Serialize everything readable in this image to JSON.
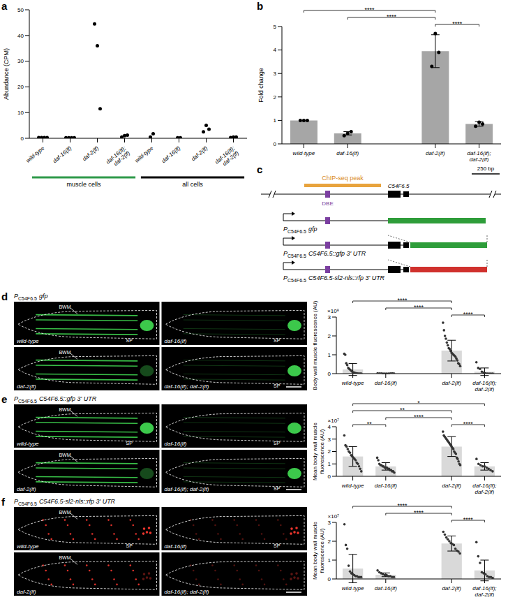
{
  "chart_data": [
    {
      "panel": "a",
      "type": "scatter",
      "y_label": "Abundance (CPM)",
      "categories": [
        "wild-type",
        "daf-16(lf)",
        "daf-2(lf)",
        "daf-16(lf); daf-2(lf)",
        "wild-type",
        "daf-16(lf)",
        "daf-2(lf)",
        "daf-16(lf); daf-2(lf)"
      ],
      "groups": [
        {
          "label": "muscle cells",
          "color": "#2f9a4a",
          "count": 4
        },
        {
          "label": "all cells",
          "color": "#000000",
          "count": 4
        }
      ],
      "points": [
        [
          0.3,
          0.3,
          0.3,
          0.3
        ],
        [
          0.2,
          0.2,
          0.2,
          0.2
        ],
        [
          44.5,
          36,
          11.5
        ],
        [
          0.5,
          1,
          1.2
        ],
        [
          0.5,
          1.8
        ],
        [
          0.2,
          0.2
        ],
        [
          2.5,
          5,
          3.5
        ],
        [
          0.3,
          0.5,
          0.5
        ]
      ],
      "color": "#000000",
      "ylim": [
        0,
        50
      ],
      "yticks": [
        0,
        10,
        20,
        30,
        40,
        50
      ]
    },
    {
      "panel": "b",
      "type": "bar",
      "y_label": "Fold change",
      "categories": [
        "wild-type",
        "daf-16(lf)",
        null,
        "daf-2(lf)",
        "daf-16(lf); daf-2(lf)"
      ],
      "values": [
        1,
        0.45,
        null,
        3.95,
        0.85
      ],
      "errors": [
        0,
        0.07,
        null,
        0.7,
        0.1
      ],
      "points": [
        [
          1,
          1,
          1
        ],
        [
          0.35,
          0.45,
          0.52
        ],
        null,
        [
          3.3,
          4.7,
          3.9
        ],
        [
          0.75,
          0.92,
          0.85
        ]
      ],
      "color": "#a6a6a6",
      "ylim": [
        0,
        5
      ],
      "yticks": [
        0,
        1,
        2,
        3,
        4,
        5
      ],
      "significance": [
        {
          "between": [
            "daf-2(lf)",
            "daf-16(lf); daf-2(lf)"
          ],
          "label": "****"
        },
        {
          "between": [
            "daf-16(lf)",
            "daf-2(lf)"
          ],
          "label": "****"
        },
        {
          "between": [
            "wild-type",
            "daf-2(lf)"
          ],
          "label": "****"
        }
      ]
    },
    {
      "type": "bar",
      "y_label": "Body wall muscle fluorescence (AU)",
      "y_multiplier": "×10⁸",
      "categories": [
        "wild-type",
        "daf-16(lf)",
        null,
        "daf-2(lf)",
        "daf-16(lf); daf-2(lf)"
      ],
      "values": [
        0.22,
        0.01,
        null,
        1.22,
        0.1
      ],
      "errors": [
        0.32,
        0.01,
        null,
        0.55,
        0.2
      ],
      "points": [
        [
          1.05,
          1.0,
          0.55,
          0.45,
          0.3,
          0.25,
          0.2,
          0.15,
          0.1,
          0.05,
          0.05,
          0.03,
          0.02,
          0.01,
          0,
          0,
          0,
          0
        ],
        [
          0.02,
          0.01,
          0.01,
          0,
          0,
          0,
          0,
          0.01,
          0.02,
          0.01
        ],
        null,
        [
          2.7,
          2.3,
          2.0,
          1.85,
          1.65,
          1.5,
          1.35,
          1.3,
          1.2,
          1.1,
          1.05,
          1.0,
          0.95,
          0.9,
          0.8,
          0.7,
          0.55,
          0.5,
          0.4
        ],
        [
          0.6,
          0.3,
          0.25,
          0.1,
          0.05,
          0.02,
          0,
          0,
          0,
          0
        ]
      ],
      "color": "#d9d9d9",
      "ylim": [
        0,
        3
      ],
      "yticks": [
        0,
        1,
        2,
        3
      ],
      "significance": [
        {
          "between": [
            "daf-2(lf)",
            "daf-16(lf); daf-2(lf)"
          ],
          "label": "****"
        },
        {
          "between": [
            "daf-16(lf)",
            "daf-2(lf)"
          ],
          "label": "****"
        },
        {
          "between": [
            "wild-type",
            "daf-2(lf)"
          ],
          "label": "****"
        }
      ]
    },
    {
      "type": "bar",
      "y_label": "Mean body wall muscle fluorescence (AU)",
      "y_multiplier": "×10⁷",
      "categories": [
        "wild-type",
        "daf-16(lf)",
        null,
        "daf-2(lf)",
        "daf-16(lf); daf-2(lf)"
      ],
      "values": [
        1.6,
        0.8,
        null,
        2.4,
        0.8
      ],
      "errors": [
        0.8,
        0.3,
        null,
        0.8,
        0.3
      ],
      "points": [
        [
          3.3,
          2.5,
          2.4,
          2.2,
          2.0,
          1.9,
          1.7,
          1.6,
          1.5,
          1.4,
          1.3,
          1.1,
          1.0,
          0.8,
          0.6,
          0.4
        ],
        [
          1.5,
          1.3,
          1.0,
          0.9,
          0.9,
          0.8,
          0.8,
          0.7,
          0.7,
          0.7,
          0.6,
          0.6,
          0.5,
          0.5,
          0.4,
          0.4,
          0.3
        ],
        null,
        [
          3.6,
          3.3,
          3.2,
          3.1,
          3.0,
          2.9,
          2.8,
          2.7,
          2.6,
          2.5,
          2.4,
          2.3,
          2.2,
          2.0,
          1.9,
          1.8,
          1.5,
          1.4,
          1.2,
          1.0,
          0.9
        ],
        [
          1.4,
          1.0,
          0.9,
          0.8,
          0.8,
          0.7,
          0.6,
          0.5,
          0.4
        ]
      ],
      "color": "#d9d9d9",
      "ylim": [
        0,
        4
      ],
      "yticks": [
        0,
        1,
        2,
        3,
        4
      ],
      "significance": [
        {
          "between": [
            "wild-type",
            "daf-16(lf)"
          ],
          "label": "**"
        },
        {
          "between": [
            "daf-16(lf)",
            "daf-2(lf)"
          ],
          "label": "****"
        },
        {
          "between": [
            "daf-2(lf)",
            "daf-16(lf); daf-2(lf)"
          ],
          "label": "****"
        },
        {
          "between": [
            "wild-type",
            "daf-2(lf)"
          ],
          "label": "**"
        },
        {
          "between": [
            "wild-type",
            "daf-16(lf); daf-2(lf)"
          ],
          "label": "*"
        }
      ]
    },
    {
      "type": "bar",
      "y_label": "Mean body wall muscle fluorescence (AU)",
      "y_multiplier": "×10⁷",
      "categories": [
        "wild-type",
        "daf-16(lf)",
        null,
        "daf-2(lf)",
        "daf-16(lf); daf-2(lf)"
      ],
      "values": [
        0.55,
        0.22,
        null,
        1.88,
        0.45
      ],
      "errors": [
        0.75,
        0.1,
        null,
        0.4,
        0.55
      ],
      "points": [
        [
          2.9,
          1.8,
          1.6,
          0.7,
          0.4,
          0.3,
          0.25,
          0.2,
          0.15,
          0.15,
          0.1,
          0.1,
          0.1
        ],
        [
          0.45,
          0.35,
          0.3,
          0.25,
          0.2,
          0.2,
          0.15,
          0.15,
          0.1,
          0.1
        ],
        null,
        [
          2.5,
          2.35,
          2.2,
          2.1,
          2.0,
          1.9,
          1.85,
          1.8,
          1.6,
          1.5,
          1.45,
          1.35
        ],
        [
          1.95,
          1.2,
          0.85,
          0.35,
          0.3,
          0.25,
          0.15,
          0.1,
          0.1,
          0.05
        ]
      ],
      "color": "#d9d9d9",
      "ylim": [
        0,
        3
      ],
      "yticks": [
        0,
        1,
        2,
        3
      ],
      "significance": [
        {
          "between": [
            "daf-2(lf)",
            "daf-16(lf); daf-2(lf)"
          ],
          "label": "****"
        },
        {
          "between": [
            "daf-16(lf)",
            "daf-2(lf)"
          ],
          "label": "****"
        },
        {
          "between": [
            "wild-type",
            "daf-2(lf)"
          ],
          "label": "****"
        }
      ]
    }
  ],
  "diagram": {
    "panel": "c",
    "scale_bar": "250 bp",
    "peak_label": "ChIP-seq peak",
    "element": "DBE",
    "gene": "C54F6.5",
    "constructs": [
      {
        "prefix": "P",
        "subscript": "C54F6.5",
        "text": "gfp",
        "color": "#2e9d3a"
      },
      {
        "prefix": "P",
        "subscript": "C54F6.5",
        "text": "C54F6.5::gfp 3' UTR",
        "color": "#2e9d3a"
      },
      {
        "prefix": "P",
        "subscript": "C54F6.5",
        "text": "C54F6.5-sl2-nls::rfp 3' UTR",
        "color": "#d0312d"
      }
    ]
  },
  "images": [
    {
      "panel": "d",
      "title": {
        "prefix": "P",
        "subscript": "C54F6.5",
        "text": "gfp"
      },
      "color": "#3fd34f",
      "panes": [
        {
          "genotype": "wild-type",
          "labels": [
            "BWM",
            "SP"
          ]
        },
        {
          "genotype": "daf-16(lf)",
          "labels": [
            "SP"
          ]
        },
        {
          "genotype": "daf-2(lf)",
          "labels": [
            "BWM"
          ]
        },
        {
          "genotype": "daf-16(lf); daf-2(lf)",
          "labels": [
            "SP"
          ]
        }
      ]
    },
    {
      "panel": "e",
      "title": {
        "prefix": "P",
        "subscript": "C54F6.5",
        "text": "C54F6.5::gfp 3' UTR"
      },
      "color": "#3fd34f",
      "panes": [
        {
          "genotype": "wild-type",
          "labels": [
            "BWM",
            "SP"
          ]
        },
        {
          "genotype": "daf-16(lf)",
          "labels": [
            "SP"
          ]
        },
        {
          "genotype": "daf-2(lf)",
          "labels": [
            "BWM"
          ]
        },
        {
          "genotype": "daf-16(lf); daf-2(lf)",
          "labels": [
            "SP"
          ]
        }
      ]
    },
    {
      "panel": "f",
      "title": {
        "prefix": "P",
        "subscript": "C54F6.5",
        "text": "C54F6.5-sl2-nls::rfp 3' UTR"
      },
      "color": "#e8342c",
      "marker": "dot",
      "panes": [
        {
          "genotype": "wild-type",
          "labels": [
            "BWM",
            "SP"
          ]
        },
        {
          "genotype": "daf-16(lf)",
          "labels": [
            "SP"
          ]
        },
        {
          "genotype": "daf-2(lf)",
          "labels": [
            "BWM"
          ]
        },
        {
          "genotype": "daf-16(lf); daf-2(lf)",
          "labels": []
        }
      ]
    }
  ]
}
